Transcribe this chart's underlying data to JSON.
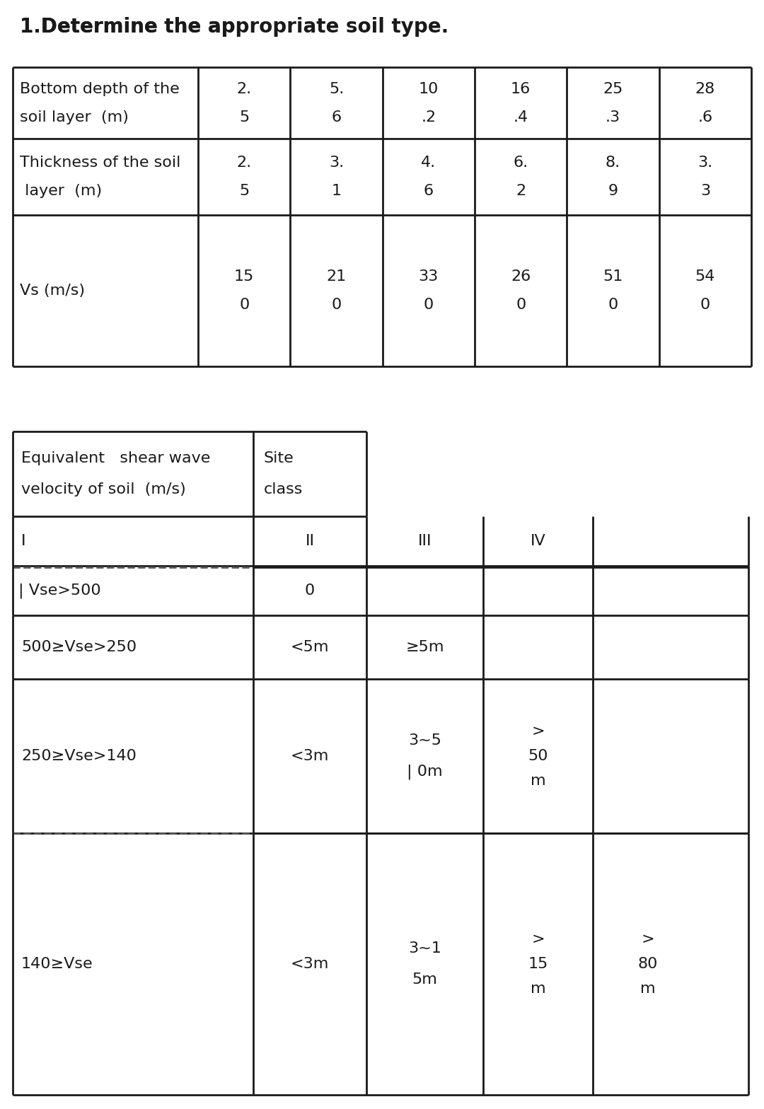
{
  "title": "1.Determine the apρropriate soil type.",
  "bg_color": "#ffffff",
  "text_color": "#1a1a1a",
  "t1_row1_label_line1": "Bottom depth of the",
  "t1_row1_label_line2": "soil layer  (m)",
  "t1_row1_top": [
    "2.",
    "5.",
    "10",
    "16",
    "25",
    "28"
  ],
  "t1_row1_bot": [
    "5",
    "6",
    ".2",
    ".4",
    ".3",
    ".6"
  ],
  "t1_row2_label_line1": "Thickness of the soil",
  "t1_row2_label_line2": " layer  (m)",
  "t1_row2_top": [
    "2.",
    "3.",
    "4.",
    "6.",
    "8.",
    "3."
  ],
  "t1_row2_bot": [
    "5",
    "1",
    "6",
    "2",
    "9",
    "3"
  ],
  "t1_row3_label": "Vs (m/s)",
  "t1_row3_top": [
    "15",
    "21",
    "33",
    "26",
    "51",
    "54"
  ],
  "t1_row3_bot": [
    "0",
    "0",
    "0",
    "0",
    "0",
    "0"
  ],
  "t2_header_left_line1": "Equivalent   shear wave",
  "t2_header_left_line2": "velocity of soil  (m/s)",
  "t2_header_right_line1": "Site",
  "t2_header_right_line2": "class",
  "t2_sub_cols": [
    "I",
    "II",
    "III",
    "IV"
  ],
  "t2_r1_left": "Vse>500",
  "t2_r1_c2": "0",
  "t2_r2_left": "500≥Vse>250",
  "t2_r2_c2": "<5m",
  "t2_r2_c3": "≥5m",
  "t2_r3_left": "250≥Vse>140",
  "t2_r3_c2": "<3m",
  "t2_r3_c3_l1": "3~5",
  "t2_r3_c3_l2": "| 0m",
  "t2_r3_c4_l1": ">",
  "t2_r3_c4_l2": "50",
  "t2_r3_c4_l3": "m",
  "t2_r4_left": "140≥Vse",
  "t2_r4_c2": "<3m",
  "t2_r4_c3_l1": "3~1",
  "t2_r4_c3_l2": "5m",
  "t2_r4_c4_l1": ">",
  "t2_r4_c4_l2": "15",
  "t2_r4_c4_l3": "m",
  "t2_r4_c5_l1": ">",
  "t2_r4_c5_l2": "80",
  "t2_r4_c5_l3": "m"
}
